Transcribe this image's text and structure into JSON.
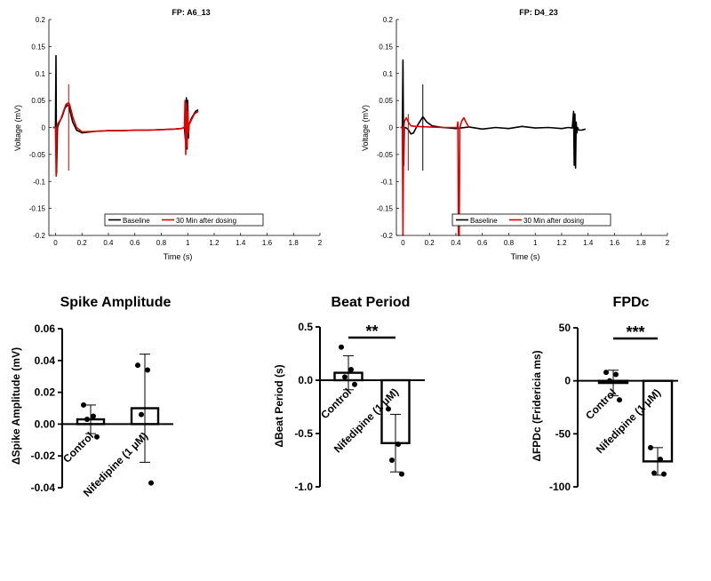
{
  "chart_data": [
    {
      "type": "line",
      "title": "FP: A6_13",
      "xlabel": "Time (s)",
      "ylabel": "Voltage (mV)",
      "xlim": [
        -0.05,
        2
      ],
      "ylim": [
        -0.2,
        0.2
      ],
      "xticks": [
        "0",
        "0.2",
        "0.4",
        "0.6",
        "0.8",
        "1",
        "1.2",
        "1.4",
        "1.6",
        "1.8",
        "2"
      ],
      "yticks": [
        "-0.2",
        "-0.15",
        "-0.1",
        "-0.05",
        "0",
        "0.05",
        "0.1",
        "0.15",
        "0.2"
      ],
      "legend": [
        "Baseline",
        "30 Min after dosing"
      ],
      "series": [
        {
          "name": "Baseline",
          "color": "#000000",
          "x": [
            -0.02,
            0.0,
            0.004,
            0.008,
            0.015,
            0.03,
            0.05,
            0.07,
            0.09,
            0.1,
            0.11,
            0.13,
            0.16,
            0.2,
            0.3,
            0.4,
            0.5,
            0.6,
            0.7,
            0.8,
            0.9,
            0.95,
            0.975,
            0.985,
            0.99,
            0.995,
            1.0,
            1.005,
            1.01,
            1.02,
            1.03,
            1.04,
            1.06,
            1.08
          ],
          "y": [
            0,
            0.0,
            0.133,
            -0.085,
            0.0,
            0.01,
            0.02,
            0.035,
            0.042,
            0.04,
            0.03,
            0.01,
            -0.005,
            -0.01,
            -0.007,
            -0.006,
            -0.006,
            -0.005,
            -0.005,
            -0.004,
            -0.003,
            -0.002,
            0.0,
            -0.03,
            0.055,
            -0.04,
            0.05,
            -0.02,
            0.005,
            0.012,
            0.018,
            0.022,
            0.03,
            0.033
          ]
        },
        {
          "name": "30 Min after dosing",
          "color": "#e00000",
          "x": [
            -0.02,
            0.0,
            0.005,
            0.01,
            0.015,
            0.02,
            0.04,
            0.06,
            0.08,
            0.1,
            0.11,
            0.13,
            0.16,
            0.2,
            0.3,
            0.4,
            0.5,
            0.6,
            0.7,
            0.8,
            0.9,
            0.95,
            0.975,
            0.98,
            0.985,
            0.99,
            0.995,
            1.0,
            1.005,
            1.01,
            1.02,
            1.03,
            1.05,
            1.08
          ],
          "y": [
            0,
            0.0,
            -0.09,
            0.0,
            0.005,
            0.008,
            0.015,
            0.03,
            0.043,
            0.046,
            0.04,
            0.02,
            0.0,
            -0.008,
            -0.007,
            -0.006,
            -0.006,
            -0.005,
            -0.005,
            -0.004,
            -0.003,
            -0.002,
            0.0,
            0.05,
            -0.05,
            0.045,
            -0.035,
            0.03,
            -0.01,
            0.005,
            0.01,
            0.015,
            0.025,
            0.03
          ]
        }
      ],
      "markers": [
        {
          "x": 0.1,
          "color": "#e00000",
          "y_range": [
            -0.08,
            0.08
          ]
        }
      ]
    },
    {
      "type": "line",
      "title": "FP: D4_23",
      "xlabel": "Time (s)",
      "ylabel": "Voltage (mV)",
      "xlim": [
        -0.05,
        2
      ],
      "ylim": [
        -0.2,
        0.2
      ],
      "xticks": [
        "0",
        "0.2",
        "0.4",
        "0.6",
        "0.8",
        "1",
        "1.2",
        "1.4",
        "1.6",
        "1.8",
        "2"
      ],
      "yticks": [
        "-0.2",
        "-0.15",
        "-0.1",
        "-0.05",
        "0",
        "0.05",
        "0.1",
        "0.15",
        "0.2"
      ],
      "legend": [
        "Baseline",
        "30 Min after dosing"
      ],
      "series": [
        {
          "name": "Baseline",
          "color": "#000000",
          "x": [
            -0.02,
            -0.005,
            0.0,
            0.005,
            0.01,
            0.02,
            0.04,
            0.06,
            0.08,
            0.1,
            0.13,
            0.15,
            0.18,
            0.22,
            0.3,
            0.4,
            0.5,
            0.6,
            0.7,
            0.8,
            0.9,
            1.0,
            1.1,
            1.2,
            1.25,
            1.28,
            1.29,
            1.295,
            1.3,
            1.305,
            1.31,
            1.315,
            1.32,
            1.33,
            1.35,
            1.38
          ],
          "y": [
            0,
            0.0,
            0.125,
            -0.07,
            0.0,
            0.0,
            -0.004,
            -0.012,
            -0.01,
            0.0,
            0.012,
            0.02,
            0.01,
            0.003,
            0.0,
            -0.002,
            0.001,
            -0.003,
            0.0,
            -0.002,
            0.002,
            -0.001,
            0.0,
            -0.002,
            0.0,
            -0.001,
            0.03,
            -0.07,
            0.025,
            -0.075,
            0.01,
            -0.01,
            0.0,
            -0.005,
            -0.005,
            -0.003
          ]
        },
        {
          "name": "30 Min after dosing",
          "color": "#e00000",
          "x": [
            -0.02,
            -0.005,
            0.0,
            0.005,
            0.012,
            0.025,
            0.04,
            0.06,
            0.1,
            0.2,
            0.3,
            0.38,
            0.41,
            0.415,
            0.42,
            0.425,
            0.43,
            0.445,
            0.46,
            0.48,
            0.5
          ],
          "y": [
            0,
            0.0,
            -0.2,
            0.0,
            0.012,
            0.018,
            0.01,
            0.003,
            0.002,
            0.001,
            0.0,
            0.0,
            0.0,
            0.01,
            -0.2,
            -0.2,
            0.0,
            0.012,
            0.018,
            0.008,
            0.0
          ]
        }
      ],
      "markers": [
        {
          "x": 0.04,
          "color": "#e00000",
          "y_range": [
            -0.08,
            0.025
          ]
        },
        {
          "x": 0.15,
          "color": "#000000",
          "y_range": [
            -0.08,
            0.08
          ]
        }
      ]
    },
    {
      "type": "bar",
      "title": "Spike Amplitude",
      "ylabel": "ΔSpike Amplitude (mV)",
      "categories": [
        "Control",
        "Nifedipine (1 μM)"
      ],
      "values": [
        0.003,
        0.01
      ],
      "error": [
        0.009,
        0.034
      ],
      "points": [
        [
          0.012,
          0.005,
          0.003,
          -0.008
        ],
        [
          0.037,
          0.034,
          0.006,
          -0.037
        ]
      ],
      "ylim": [
        -0.04,
        0.06
      ],
      "yticks": [
        "-0.04",
        "-0.02",
        "0.00",
        "0.02",
        "0.04",
        "0.06"
      ],
      "significance": ""
    },
    {
      "type": "bar",
      "title": "Beat Period",
      "ylabel": "ΔBeat Period (s)",
      "categories": [
        "Control",
        "Nifedipine (1 μM)"
      ],
      "values": [
        0.07,
        -0.59
      ],
      "error": [
        0.16,
        0.27
      ],
      "points": [
        [
          0.31,
          0.1,
          0.03,
          -0.04
        ],
        [
          -0.27,
          -0.6,
          -0.75,
          -0.88
        ]
      ],
      "ylim": [
        -1.0,
        0.5
      ],
      "yticks": [
        "-1.0",
        "-0.5",
        "0.0",
        "0.5"
      ],
      "significance": "**"
    },
    {
      "type": "bar",
      "title": "FPDc",
      "ylabel": "ΔFPDc (Fridericia ms)",
      "categories": [
        "Control",
        "Nifedipine (1 μM)"
      ],
      "values": [
        -2,
        -76
      ],
      "error": [
        12,
        13
      ],
      "points": [
        [
          8,
          6,
          0,
          -18
        ],
        [
          -63,
          -74,
          -87,
          -88
        ]
      ],
      "ylim": [
        -100,
        50
      ],
      "yticks": [
        "-100",
        "-50",
        "0",
        "50"
      ],
      "significance": "***"
    }
  ]
}
